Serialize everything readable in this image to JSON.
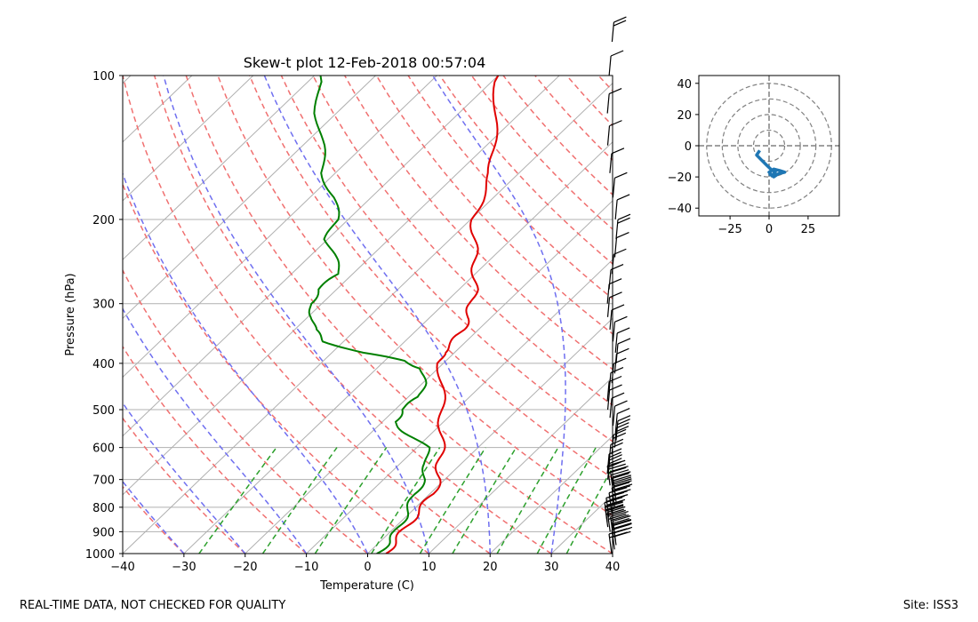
{
  "chart_data": [
    {
      "type": "skew-t",
      "title": "Skew-t plot 12-Feb-2018 00:57:04",
      "xlabel": "Temperature (C)",
      "ylabel": "Pressure (hPa)",
      "xlim": [
        -40,
        40
      ],
      "ylim": [
        1000,
        100
      ],
      "x_ticks": [
        "−40",
        "−30",
        "−20",
        "−10",
        "0",
        "10",
        "20",
        "30",
        "40"
      ],
      "y_ticks": [
        "100",
        "200",
        "300",
        "400",
        "500",
        "600",
        "700",
        "800",
        "900",
        "1000"
      ],
      "temperature_profile": {
        "name": "temperature",
        "color": "#e00000",
        "points": [
          [
            1000,
            3
          ],
          [
            950,
            2.5
          ],
          [
            900,
            2
          ],
          [
            850,
            1.5
          ],
          [
            800,
            1
          ],
          [
            750,
            0.5
          ],
          [
            700,
            -1
          ],
          [
            650,
            -3.5
          ],
          [
            600,
            -6
          ],
          [
            550,
            -9
          ],
          [
            500,
            -12.5
          ],
          [
            450,
            -16
          ],
          [
            400,
            -20.5
          ],
          [
            380,
            -22
          ],
          [
            360,
            -22
          ],
          [
            340,
            -22.5
          ],
          [
            320,
            -24
          ],
          [
            300,
            -25.5
          ],
          [
            280,
            -27.5
          ],
          [
            260,
            -30
          ],
          [
            240,
            -33
          ],
          [
            220,
            -36
          ],
          [
            200,
            -39.5
          ],
          [
            180,
            -42
          ],
          [
            160,
            -44.5
          ],
          [
            140,
            -49
          ],
          [
            120,
            -54
          ],
          [
            100,
            -60
          ]
        ]
      },
      "dewpoint_profile": {
        "name": "dewpoint",
        "color": "#008000",
        "points": [
          [
            1000,
            1.5
          ],
          [
            950,
            1.5
          ],
          [
            900,
            1
          ],
          [
            850,
            0
          ],
          [
            800,
            -1
          ],
          [
            750,
            -2.5
          ],
          [
            700,
            -3.5
          ],
          [
            650,
            -5.5
          ],
          [
            600,
            -8.5
          ],
          [
            560,
            -14
          ],
          [
            530,
            -18
          ],
          [
            500,
            -19
          ],
          [
            470,
            -18
          ],
          [
            440,
            -20
          ],
          [
            410,
            -22.5
          ],
          [
            395,
            -27
          ],
          [
            380,
            -35
          ],
          [
            360,
            -43
          ],
          [
            340,
            -47
          ],
          [
            320,
            -49
          ],
          [
            300,
            -52
          ],
          [
            280,
            -53
          ],
          [
            260,
            -52
          ],
          [
            240,
            -56
          ],
          [
            220,
            -60
          ],
          [
            200,
            -62
          ],
          [
            180,
            -66
          ],
          [
            160,
            -72
          ],
          [
            140,
            -77
          ],
          [
            120,
            -83
          ],
          [
            100,
            -89
          ]
        ]
      },
      "hodograph": {
        "xlim": [
          -45,
          45
        ],
        "ylim": [
          -45,
          45
        ],
        "x_ticks": [
          "−25",
          "0",
          "25"
        ],
        "y_ticks": [
          "40",
          "20",
          "0",
          "−20",
          "−40"
        ],
        "rings": [
          10,
          20,
          30,
          40
        ],
        "color": "#1f77b4",
        "trace": [
          [
            -6,
            -3
          ],
          [
            -8,
            -6
          ],
          [
            -5,
            -9
          ],
          [
            -2,
            -12
          ],
          [
            1,
            -15
          ],
          [
            4,
            -17
          ],
          [
            2,
            -19
          ],
          [
            0,
            -17
          ],
          [
            3,
            -15
          ],
          [
            7,
            -16
          ],
          [
            10,
            -17
          ],
          [
            6,
            -18
          ],
          [
            3,
            -20
          ],
          [
            0,
            -18
          ]
        ]
      },
      "wind_barbs": {
        "color": "#000000",
        "levels": [
          {
            "p": 1000,
            "barbs": 2
          },
          {
            "p": 980,
            "barbs": 3
          },
          {
            "p": 960,
            "barbs": 3
          },
          {
            "p": 940,
            "barbs": 3
          },
          {
            "p": 920,
            "barbs": 3
          },
          {
            "p": 900,
            "barbs": 3
          },
          {
            "p": 880,
            "barbs": 3
          },
          {
            "p": 860,
            "barbs": 3
          },
          {
            "p": 840,
            "barbs": 3
          },
          {
            "p": 820,
            "barbs": 3
          },
          {
            "p": 800,
            "barbs": 3
          },
          {
            "p": 780,
            "barbs": 3
          },
          {
            "p": 760,
            "barbs": 3
          },
          {
            "p": 740,
            "barbs": 3
          },
          {
            "p": 720,
            "barbs": 3
          },
          {
            "p": 700,
            "barbs": 3
          },
          {
            "p": 680,
            "barbs": 2
          },
          {
            "p": 650,
            "barbs": 2
          },
          {
            "p": 620,
            "barbs": 2
          },
          {
            "p": 600,
            "barbs": 2
          },
          {
            "p": 580,
            "barbs": 2
          },
          {
            "p": 560,
            "barbs": 1
          },
          {
            "p": 540,
            "barbs": 1
          },
          {
            "p": 520,
            "barbs": 1
          },
          {
            "p": 500,
            "barbs": 1
          },
          {
            "p": 480,
            "barbs": 1
          },
          {
            "p": 460,
            "barbs": 1
          },
          {
            "p": 440,
            "barbs": 1
          },
          {
            "p": 420,
            "barbs": 1
          },
          {
            "p": 400,
            "barbs": 1
          },
          {
            "p": 380,
            "barbs": 1
          },
          {
            "p": 360,
            "barbs": 1
          },
          {
            "p": 340,
            "barbs": 1
          },
          {
            "p": 320,
            "barbs": 1
          },
          {
            "p": 300,
            "barbs": 1
          },
          {
            "p": 280,
            "barbs": 1
          },
          {
            "p": 260,
            "barbs": 1
          },
          {
            "p": 240,
            "barbs": 1
          },
          {
            "p": 220,
            "barbs": 2
          },
          {
            "p": 200,
            "barbs": 1
          },
          {
            "p": 180,
            "barbs": 1
          },
          {
            "p": 160,
            "barbs": 1
          },
          {
            "p": 140,
            "barbs": 1
          },
          {
            "p": 120,
            "barbs": 1
          },
          {
            "p": 100,
            "barbs": 1
          },
          {
            "p": 85,
            "barbs": 2
          }
        ]
      }
    }
  ],
  "footer": {
    "left": "REAL-TIME DATA, NOT CHECKED FOR QUALITY",
    "right": "Site: ISS3"
  }
}
